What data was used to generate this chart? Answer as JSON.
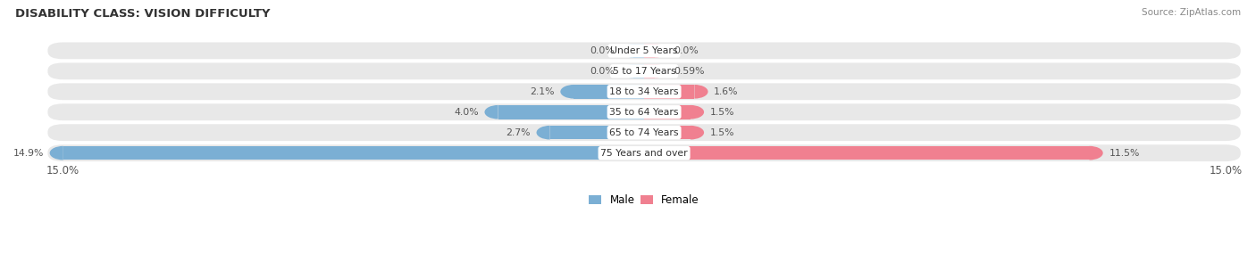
{
  "title": "DISABILITY CLASS: VISION DIFFICULTY",
  "source": "Source: ZipAtlas.com",
  "categories": [
    "Under 5 Years",
    "5 to 17 Years",
    "18 to 34 Years",
    "35 to 64 Years",
    "65 to 74 Years",
    "75 Years and over"
  ],
  "male_values": [
    0.0,
    0.0,
    2.1,
    4.0,
    2.7,
    14.9
  ],
  "female_values": [
    0.0,
    0.59,
    1.6,
    1.5,
    1.5,
    11.5
  ],
  "male_labels": [
    "0.0%",
    "0.0%",
    "2.1%",
    "4.0%",
    "2.7%",
    "14.9%"
  ],
  "female_labels": [
    "0.0%",
    "0.59%",
    "1.6%",
    "1.5%",
    "1.5%",
    "11.5%"
  ],
  "male_color": "#7bafd4",
  "female_color": "#f08090",
  "axis_max": 15.0,
  "bg_color": "#ffffff",
  "label_color": "#555555",
  "title_color": "#333333",
  "bar_row_bg": "#e8e8e8",
  "legend_male_label": "Male",
  "legend_female_label": "Female",
  "min_bar_display": 0.5
}
